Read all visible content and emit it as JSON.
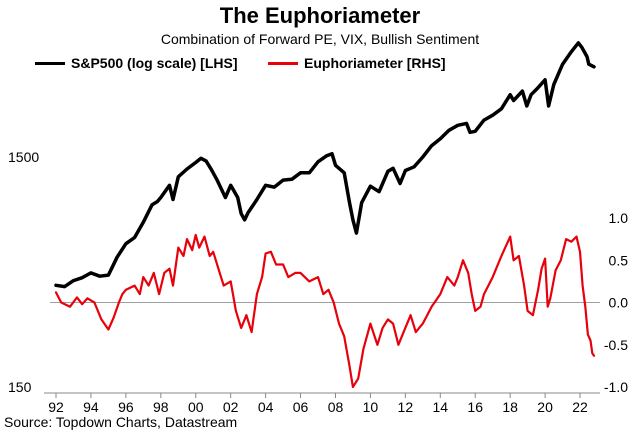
{
  "chart_data": {
    "type": "line",
    "title": "The Euphoriameter",
    "subtitle": "Combination of Forward PE, VIX, Bullish Sentiment",
    "source": "Source: Topdown Charts, Datastream",
    "x_ticks": [
      "92",
      "94",
      "96",
      "98",
      "00",
      "02",
      "04",
      "06",
      "08",
      "10",
      "12",
      "14",
      "16",
      "18",
      "20",
      "22"
    ],
    "x_range": [
      1992,
      2022.8
    ],
    "left_axis": {
      "scale": "log",
      "range": [
        150,
        5000
      ],
      "tick_labels": [
        "1500",
        "150"
      ],
      "tick_values": [
        1500,
        150
      ]
    },
    "right_axis": {
      "range": [
        -1.0,
        1.0
      ],
      "tick_labels": [
        "1.0",
        "0.5",
        "0.0",
        "-0.5",
        "-1.0"
      ],
      "tick_values": [
        1.0,
        0.5,
        0.0,
        -0.5,
        -1.0
      ]
    },
    "zero_line_color": "#a0a0a0",
    "series": [
      {
        "name": "S&P500 (log scale) [LHS]",
        "axis": "left",
        "color": "#000000",
        "points": [
          [
            1992.0,
            415
          ],
          [
            1992.5,
            410
          ],
          [
            1993.0,
            435
          ],
          [
            1993.5,
            448
          ],
          [
            1994.0,
            470
          ],
          [
            1994.5,
            455
          ],
          [
            1995.0,
            460
          ],
          [
            1995.5,
            550
          ],
          [
            1996.0,
            630
          ],
          [
            1996.5,
            670
          ],
          [
            1997.0,
            780
          ],
          [
            1997.5,
            930
          ],
          [
            1997.8,
            960
          ],
          [
            1998.0,
            1000
          ],
          [
            1998.5,
            1130
          ],
          [
            1998.7,
            980
          ],
          [
            1999.0,
            1230
          ],
          [
            1999.5,
            1330
          ],
          [
            2000.0,
            1420
          ],
          [
            2000.3,
            1480
          ],
          [
            2000.6,
            1440
          ],
          [
            2000.9,
            1320
          ],
          [
            2001.2,
            1200
          ],
          [
            2001.7,
            1000
          ],
          [
            2002.0,
            1130
          ],
          [
            2002.4,
            1000
          ],
          [
            2002.6,
            850
          ],
          [
            2002.8,
            800
          ],
          [
            2003.0,
            860
          ],
          [
            2003.5,
            980
          ],
          [
            2004.0,
            1130
          ],
          [
            2004.5,
            1110
          ],
          [
            2005.0,
            1190
          ],
          [
            2005.5,
            1200
          ],
          [
            2006.0,
            1280
          ],
          [
            2006.5,
            1280
          ],
          [
            2007.0,
            1430
          ],
          [
            2007.5,
            1520
          ],
          [
            2007.8,
            1550
          ],
          [
            2008.0,
            1380
          ],
          [
            2008.5,
            1280
          ],
          [
            2008.8,
            950
          ],
          [
            2009.0,
            800
          ],
          [
            2009.2,
            700
          ],
          [
            2009.5,
            950
          ],
          [
            2010.0,
            1120
          ],
          [
            2010.5,
            1060
          ],
          [
            2011.0,
            1300
          ],
          [
            2011.3,
            1340
          ],
          [
            2011.7,
            1150
          ],
          [
            2012.0,
            1310
          ],
          [
            2012.5,
            1360
          ],
          [
            2013.0,
            1500
          ],
          [
            2013.5,
            1680
          ],
          [
            2014.0,
            1800
          ],
          [
            2014.5,
            1960
          ],
          [
            2015.0,
            2060
          ],
          [
            2015.5,
            2100
          ],
          [
            2015.7,
            1920
          ],
          [
            2016.0,
            1940
          ],
          [
            2016.5,
            2170
          ],
          [
            2017.0,
            2280
          ],
          [
            2017.5,
            2430
          ],
          [
            2018.0,
            2800
          ],
          [
            2018.2,
            2640
          ],
          [
            2018.7,
            2900
          ],
          [
            2018.95,
            2500
          ],
          [
            2019.2,
            2800
          ],
          [
            2019.5,
            2950
          ],
          [
            2020.0,
            3250
          ],
          [
            2020.2,
            2500
          ],
          [
            2020.5,
            3100
          ],
          [
            2021.0,
            3800
          ],
          [
            2021.5,
            4300
          ],
          [
            2021.9,
            4700
          ],
          [
            2022.1,
            4500
          ],
          [
            2022.4,
            4100
          ],
          [
            2022.5,
            3800
          ],
          [
            2022.8,
            3700
          ]
        ]
      },
      {
        "name": "Euphoriameter [RHS]",
        "axis": "right",
        "color": "#e8000b",
        "points": [
          [
            1992.0,
            0.12
          ],
          [
            1992.3,
            0.0
          ],
          [
            1992.8,
            -0.05
          ],
          [
            1993.2,
            0.06
          ],
          [
            1993.5,
            -0.02
          ],
          [
            1993.8,
            0.05
          ],
          [
            1994.2,
            0.0
          ],
          [
            1994.6,
            -0.2
          ],
          [
            1995.0,
            -0.32
          ],
          [
            1995.3,
            -0.18
          ],
          [
            1995.6,
            0.0
          ],
          [
            1995.8,
            0.1
          ],
          [
            1996.0,
            0.15
          ],
          [
            1996.5,
            0.2
          ],
          [
            1996.8,
            0.1
          ],
          [
            1997.0,
            0.3
          ],
          [
            1997.3,
            0.2
          ],
          [
            1997.6,
            0.35
          ],
          [
            1997.9,
            0.1
          ],
          [
            1998.2,
            0.35
          ],
          [
            1998.5,
            0.4
          ],
          [
            1998.7,
            0.2
          ],
          [
            1999.0,
            0.65
          ],
          [
            1999.3,
            0.55
          ],
          [
            1999.5,
            0.75
          ],
          [
            1999.8,
            0.62
          ],
          [
            2000.0,
            0.8
          ],
          [
            2000.2,
            0.65
          ],
          [
            2000.5,
            0.78
          ],
          [
            2000.8,
            0.55
          ],
          [
            2001.0,
            0.6
          ],
          [
            2001.3,
            0.4
          ],
          [
            2001.6,
            0.2
          ],
          [
            2002.0,
            0.25
          ],
          [
            2002.3,
            -0.1
          ],
          [
            2002.6,
            -0.3
          ],
          [
            2002.9,
            -0.15
          ],
          [
            2003.2,
            -0.35
          ],
          [
            2003.5,
            0.1
          ],
          [
            2003.8,
            0.3
          ],
          [
            2004.0,
            0.58
          ],
          [
            2004.3,
            0.6
          ],
          [
            2004.6,
            0.45
          ],
          [
            2005.0,
            0.45
          ],
          [
            2005.3,
            0.3
          ],
          [
            2005.7,
            0.35
          ],
          [
            2006.0,
            0.35
          ],
          [
            2006.5,
            0.25
          ],
          [
            2007.0,
            0.3
          ],
          [
            2007.3,
            0.1
          ],
          [
            2007.6,
            0.15
          ],
          [
            2007.9,
            0.0
          ],
          [
            2008.2,
            -0.25
          ],
          [
            2008.5,
            -0.4
          ],
          [
            2008.8,
            -0.75
          ],
          [
            2009.0,
            -1.0
          ],
          [
            2009.3,
            -0.9
          ],
          [
            2009.6,
            -0.55
          ],
          [
            2010.0,
            -0.25
          ],
          [
            2010.4,
            -0.5
          ],
          [
            2010.7,
            -0.3
          ],
          [
            2011.0,
            -0.2
          ],
          [
            2011.3,
            -0.25
          ],
          [
            2011.6,
            -0.5
          ],
          [
            2011.9,
            -0.35
          ],
          [
            2012.3,
            -0.15
          ],
          [
            2012.6,
            -0.35
          ],
          [
            2013.0,
            -0.25
          ],
          [
            2013.5,
            -0.05
          ],
          [
            2014.0,
            0.1
          ],
          [
            2014.4,
            0.3
          ],
          [
            2014.8,
            0.2
          ],
          [
            2015.0,
            0.3
          ],
          [
            2015.3,
            0.5
          ],
          [
            2015.6,
            0.35
          ],
          [
            2015.8,
            0.1
          ],
          [
            2016.0,
            -0.1
          ],
          [
            2016.3,
            -0.05
          ],
          [
            2016.5,
            0.1
          ],
          [
            2017.0,
            0.3
          ],
          [
            2017.5,
            0.55
          ],
          [
            2018.0,
            0.78
          ],
          [
            2018.2,
            0.5
          ],
          [
            2018.5,
            0.55
          ],
          [
            2018.8,
            0.2
          ],
          [
            2019.0,
            -0.1
          ],
          [
            2019.3,
            -0.15
          ],
          [
            2019.6,
            0.15
          ],
          [
            2019.8,
            0.4
          ],
          [
            2020.0,
            0.52
          ],
          [
            2020.15,
            -0.05
          ],
          [
            2020.3,
            0.05
          ],
          [
            2020.6,
            0.38
          ],
          [
            2020.9,
            0.5
          ],
          [
            2021.2,
            0.75
          ],
          [
            2021.5,
            0.72
          ],
          [
            2021.8,
            0.78
          ],
          [
            2022.0,
            0.6
          ],
          [
            2022.15,
            0.2
          ],
          [
            2022.3,
            -0.05
          ],
          [
            2022.45,
            -0.38
          ],
          [
            2022.6,
            -0.45
          ],
          [
            2022.7,
            -0.6
          ],
          [
            2022.8,
            -0.63
          ]
        ]
      }
    ]
  }
}
